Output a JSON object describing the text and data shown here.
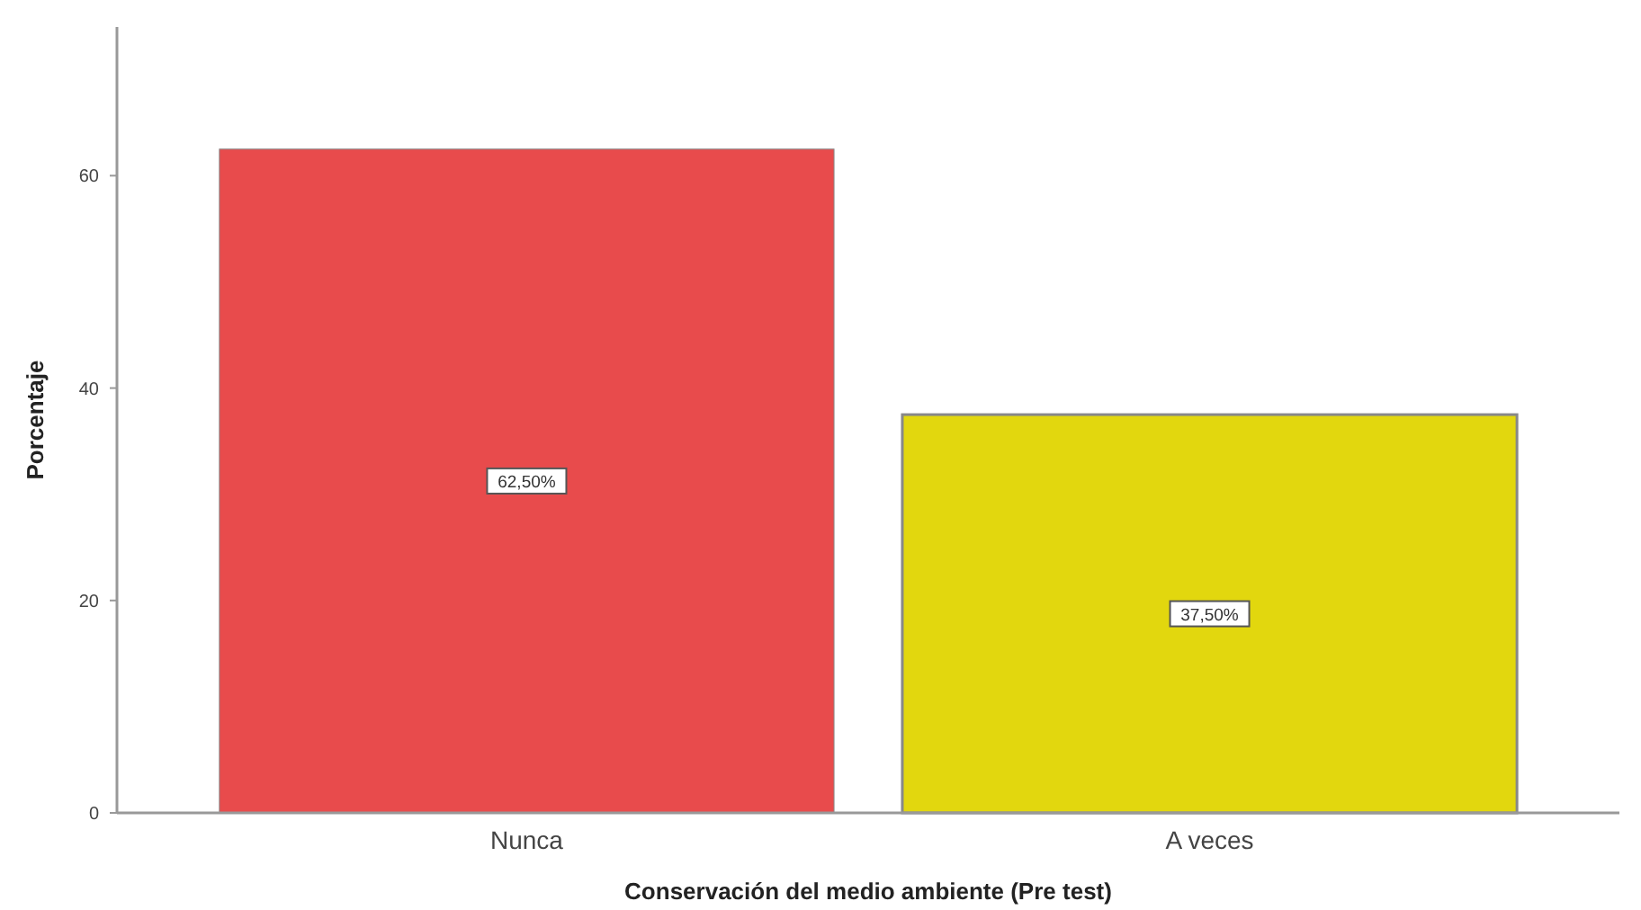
{
  "chart_data": {
    "type": "bar",
    "xlabel": "Conservación del medio ambiente (Pre test)",
    "ylabel": "Porcentaje",
    "categories": [
      "Nunca",
      "A veces"
    ],
    "values": [
      62.5,
      37.5
    ],
    "colors": [
      "#e84b4c",
      "#e2d70e"
    ],
    "value_labels": [
      "62,50%",
      "37,50%"
    ],
    "ylim": [
      0,
      74
    ],
    "yticks": [
      0,
      20,
      40,
      60
    ],
    "grid": false
  }
}
